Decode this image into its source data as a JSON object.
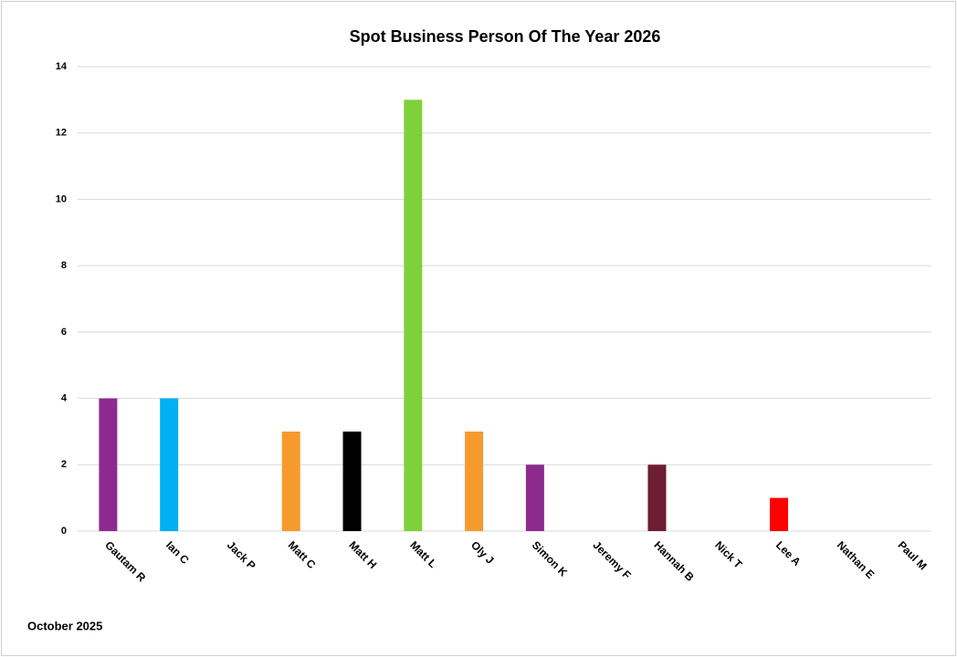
{
  "chart_data": {
    "type": "bar",
    "title": "Spot Business Person Of The Year 2026",
    "categories": [
      "Gautam R",
      "Ian C",
      "Jack P",
      "Matt C",
      "Matt H",
      "Matt L",
      "Oly J",
      "Simon K",
      "Jeremy F",
      "Hannah B",
      "Nick T",
      "Lee A",
      "Nathan E",
      "Paul M"
    ],
    "values": [
      4,
      4,
      0,
      3,
      3,
      13,
      3,
      2,
      0,
      2,
      0,
      1,
      0,
      0
    ],
    "colors": [
      "#8e2a8e",
      "#00b0f0",
      null,
      "#f79a2e",
      "#000000",
      "#7fd13b",
      "#f79a2e",
      "#8e2a8e",
      null,
      "#6d1d35",
      null,
      "#ff0000",
      null,
      null
    ],
    "ylim": [
      0,
      14
    ],
    "yticks": [
      0,
      2,
      4,
      6,
      8,
      10,
      12,
      14
    ],
    "grid": true,
    "footnote": "October 2025"
  }
}
